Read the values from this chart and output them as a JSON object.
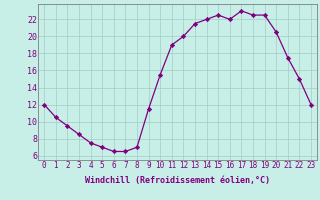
{
  "x": [
    0,
    1,
    2,
    3,
    4,
    5,
    6,
    7,
    8,
    9,
    10,
    11,
    12,
    13,
    14,
    15,
    16,
    17,
    18,
    19,
    20,
    21,
    22,
    23
  ],
  "y": [
    12,
    10.5,
    9.5,
    8.5,
    7.5,
    7.0,
    6.5,
    6.5,
    7.0,
    11.5,
    15.5,
    19.0,
    20.0,
    21.5,
    22.0,
    22.5,
    22.0,
    23.0,
    22.5,
    22.5,
    20.5,
    17.5,
    15.0,
    12.0
  ],
  "xlabel": "Windchill (Refroidissement éolien,°C)",
  "line_color": "#800080",
  "bg_color": "#c8eee8",
  "grid_color": "#a0ccc4",
  "spine_color": "#808080",
  "xlim": [
    -0.5,
    23.5
  ],
  "ylim": [
    5.5,
    23.8
  ],
  "yticks": [
    6,
    8,
    10,
    12,
    14,
    16,
    18,
    20,
    22
  ],
  "xticks": [
    0,
    1,
    2,
    3,
    4,
    5,
    6,
    7,
    8,
    9,
    10,
    11,
    12,
    13,
    14,
    15,
    16,
    17,
    18,
    19,
    20,
    21,
    22,
    23
  ],
  "tick_fontsize": 5.5,
  "xlabel_fontsize": 6.0
}
